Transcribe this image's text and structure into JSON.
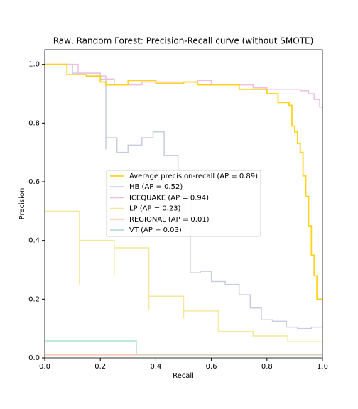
{
  "chart_data": {
    "type": "step",
    "title": "Raw, Random Forest: Precision-Recall curve (without SMOTE)",
    "x_label": "Recall",
    "y_label": "Precision",
    "xlim": [
      0,
      1
    ],
    "ylim": [
      0,
      1.05
    ],
    "xticks": [
      {
        "value": 0,
        "label": "0.0"
      },
      0.2,
      0.4,
      0.6,
      0.8,
      {
        "value": 1,
        "label": "1.0"
      }
    ],
    "yticks": [
      {
        "value": 0,
        "label": "0.0"
      },
      0.2,
      0.4,
      0.6,
      0.8,
      {
        "value": 1,
        "label": "1.0"
      }
    ],
    "grid": false,
    "legend": "center",
    "series": [
      {
        "name": "Average precision-recall (AP = 0.89)",
        "color": "#ffd21f",
        "x": [
          0,
          0.08,
          0.15,
          0.2,
          0.22,
          0.3,
          0.4,
          0.5,
          0.55,
          0.65,
          0.7,
          0.8,
          0.84,
          0.88,
          0.89,
          0.9,
          0.91,
          0.92,
          0.93,
          0.94,
          0.95,
          0.96,
          0.97,
          0.98,
          1.0
        ],
        "values": [
          1.0,
          0.965,
          0.96,
          0.94,
          0.93,
          0.945,
          0.935,
          0.94,
          0.93,
          0.93,
          0.915,
          0.9,
          0.87,
          0.86,
          0.79,
          0.77,
          0.73,
          0.7,
          0.62,
          0.55,
          0.45,
          0.35,
          0.28,
          0.2,
          0.2
        ]
      },
      {
        "name": "HB (AP = 0.52)",
        "color": "#c9cde0",
        "x": [
          0,
          0.1,
          0.2,
          0.22,
          0.22,
          0.26,
          0.3,
          0.35,
          0.39,
          0.43,
          0.48,
          0.524,
          0.56,
          0.6,
          0.65,
          0.7,
          0.74,
          0.78,
          0.82,
          0.87,
          0.91,
          0.96,
          1.0
        ],
        "values": [
          1.0,
          0.97,
          0.96,
          0.71,
          0.75,
          0.7,
          0.725,
          0.75,
          0.77,
          0.69,
          0.55,
          0.29,
          0.295,
          0.26,
          0.25,
          0.215,
          0.17,
          0.13,
          0.125,
          0.105,
          0.1,
          0.105,
          0.105
        ]
      },
      {
        "name": "ICEQUAKE (AP = 0.94)",
        "color": "#edbfe1",
        "x": [
          0,
          0.12,
          0.2,
          0.25,
          0.35,
          0.45,
          0.55,
          0.6,
          0.7,
          0.75,
          0.8,
          0.88,
          0.92,
          0.95,
          0.97,
          0.99,
          1.0
        ],
        "values": [
          1.0,
          0.97,
          0.95,
          0.93,
          0.94,
          0.94,
          0.945,
          0.93,
          0.93,
          0.92,
          0.915,
          0.915,
          0.91,
          0.9,
          0.88,
          0.855,
          0.85
        ]
      },
      {
        "name": "LP (AP = 0.23)",
        "color": "#f7e79c",
        "x": [
          0,
          0.125,
          0.125,
          0.25,
          0.25,
          0.375,
          0.375,
          0.5,
          0.5,
          0.625,
          0.625,
          0.75,
          0.75,
          0.875,
          0.875,
          1.0
        ],
        "values": [
          0.5,
          0.25,
          0.4,
          0.28,
          0.375,
          0.165,
          0.21,
          0.135,
          0.16,
          0.16,
          0.09,
          0.09,
          0.075,
          0.075,
          0.055,
          0.055
        ]
      },
      {
        "name": "REGIONAL (AP = 0.01)",
        "color": "#f6c7ae",
        "x": [
          0,
          1.0
        ],
        "values": [
          0.01,
          0.01
        ]
      },
      {
        "name": "VT (AP = 0.03)",
        "color": "#b4e1d0",
        "x": [
          0,
          0.33,
          0.33,
          1.0
        ],
        "values": [
          0.058,
          0.058,
          0.012,
          0.012
        ]
      }
    ]
  }
}
